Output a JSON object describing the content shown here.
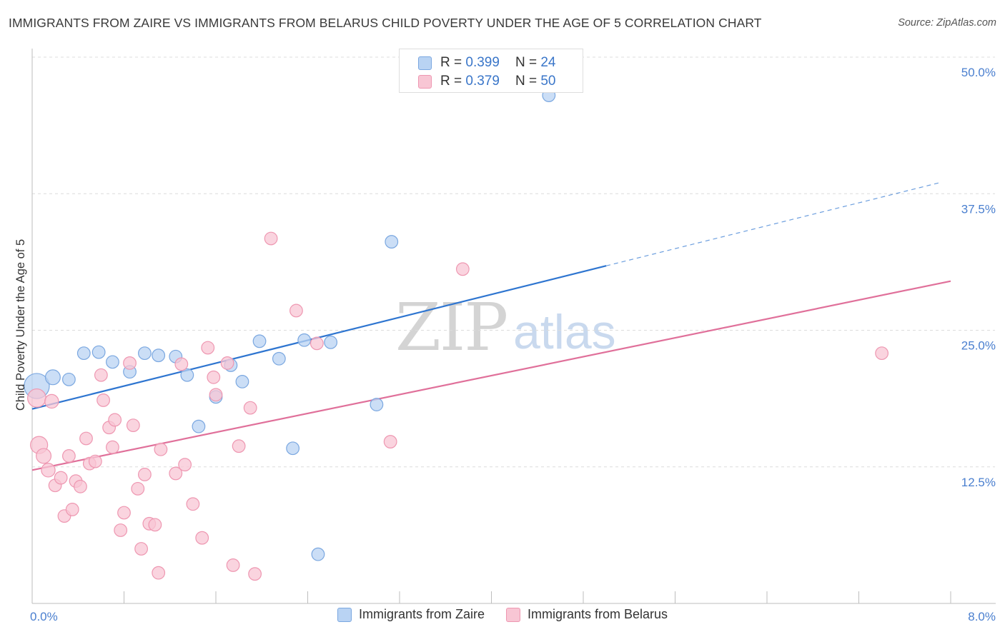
{
  "title": "IMMIGRANTS FROM ZAIRE VS IMMIGRANTS FROM BELARUS CHILD POVERTY UNDER THE AGE OF 5 CORRELATION CHART",
  "source": "Source: ZipAtlas.com",
  "watermark": {
    "zip": "ZIP",
    "atlas": "atlas"
  },
  "colors": {
    "zaire_fill": "#b9d3f3",
    "zaire_stroke": "#7aa7e0",
    "zaire_line": "#2e75d0",
    "belarus_fill": "#f8c6d4",
    "belarus_stroke": "#ee97b1",
    "belarus_line": "#e0709a",
    "tick": "#4a7fcf"
  },
  "legend": {
    "rows": [
      {
        "r_label": "R =",
        "r_value": "0.399",
        "n_label": "N =",
        "n_value": "24"
      },
      {
        "r_label": "R =",
        "r_value": "0.379",
        "n_label": "N =",
        "n_value": "50"
      }
    ]
  },
  "chart_data": {
    "type": "scatter",
    "ylabel": "Child Poverty Under the Age of 5",
    "xlim": [
      0,
      8
    ],
    "ylim": [
      0,
      50
    ],
    "x_tick_labels": [
      {
        "value": 0,
        "label": "0.0%"
      },
      {
        "value": 8,
        "label": "8.0%"
      }
    ],
    "y_tick_labels": [
      {
        "value": 12.5,
        "label": "12.5%"
      },
      {
        "value": 25,
        "label": "25.0%"
      },
      {
        "value": 37.5,
        "label": "37.5%"
      },
      {
        "value": 50,
        "label": "50.0%"
      }
    ],
    "grid": true,
    "legend_position": "top-center",
    "series": [
      {
        "name": "Immigrants from Zaire",
        "r": 0.399,
        "n": 24,
        "trend": {
          "x0": 0,
          "y0": 17.8,
          "x1": 5.0,
          "y1": 30.9,
          "dash_to_x": 7.9,
          "dash_to_y": 38.5
        },
        "points": [
          [
            0.04,
            19.9,
            2.2
          ],
          [
            0.18,
            20.7,
            1.3
          ],
          [
            0.32,
            20.5,
            1.1
          ],
          [
            0.45,
            22.9,
            1.1
          ],
          [
            0.58,
            23.0,
            1.1
          ],
          [
            0.7,
            22.1,
            1.1
          ],
          [
            0.85,
            21.2,
            1.1
          ],
          [
            0.98,
            22.9,
            1.1
          ],
          [
            1.1,
            22.7,
            1.1
          ],
          [
            1.25,
            22.6,
            1.1
          ],
          [
            1.35,
            20.9,
            1.1
          ],
          [
            1.45,
            16.2,
            1.1
          ],
          [
            1.6,
            18.9,
            1.1
          ],
          [
            1.73,
            21.8,
            1.1
          ],
          [
            1.83,
            20.3,
            1.1
          ],
          [
            1.98,
            24.0,
            1.1
          ],
          [
            2.15,
            22.4,
            1.1
          ],
          [
            2.37,
            24.1,
            1.1
          ],
          [
            2.27,
            14.2,
            1.1
          ],
          [
            2.49,
            4.5,
            1.1
          ],
          [
            2.6,
            23.9,
            1.1
          ],
          [
            3.0,
            18.2,
            1.1
          ],
          [
            3.13,
            33.1,
            1.1
          ],
          [
            4.5,
            46.5,
            1.1
          ]
        ]
      },
      {
        "name": "Immigrants from Belarus",
        "r": 0.379,
        "n": 50,
        "trend": {
          "x0": 0,
          "y0": 12.2,
          "x1": 8.0,
          "y1": 29.5
        },
        "points": [
          [
            0.04,
            18.8,
            1.6
          ],
          [
            0.06,
            14.5,
            1.5
          ],
          [
            0.1,
            13.5,
            1.3
          ],
          [
            0.14,
            12.2,
            1.2
          ],
          [
            0.17,
            18.5,
            1.2
          ],
          [
            0.2,
            10.8,
            1.1
          ],
          [
            0.25,
            11.5,
            1.1
          ],
          [
            0.28,
            8.0,
            1.1
          ],
          [
            0.32,
            13.5,
            1.1
          ],
          [
            0.35,
            8.6,
            1.1
          ],
          [
            0.38,
            11.2,
            1.1
          ],
          [
            0.42,
            10.7,
            1.1
          ],
          [
            0.47,
            15.1,
            1.1
          ],
          [
            0.5,
            12.8,
            1.1
          ],
          [
            0.55,
            13.0,
            1.1
          ],
          [
            0.6,
            20.9,
            1.1
          ],
          [
            0.62,
            18.6,
            1.1
          ],
          [
            0.67,
            16.1,
            1.1
          ],
          [
            0.7,
            14.3,
            1.1
          ],
          [
            0.72,
            16.8,
            1.1
          ],
          [
            0.77,
            6.7,
            1.1
          ],
          [
            0.8,
            8.3,
            1.1
          ],
          [
            0.85,
            22.0,
            1.1
          ],
          [
            0.88,
            16.3,
            1.1
          ],
          [
            0.92,
            10.5,
            1.1
          ],
          [
            0.95,
            5.0,
            1.1
          ],
          [
            0.98,
            11.8,
            1.1
          ],
          [
            1.02,
            7.3,
            1.1
          ],
          [
            1.07,
            7.2,
            1.1
          ],
          [
            1.12,
            14.1,
            1.1
          ],
          [
            1.1,
            2.8,
            1.1
          ],
          [
            1.25,
            11.9,
            1.1
          ],
          [
            1.3,
            21.9,
            1.1
          ],
          [
            1.33,
            12.7,
            1.1
          ],
          [
            1.4,
            9.1,
            1.1
          ],
          [
            1.48,
            6.0,
            1.1
          ],
          [
            1.53,
            23.4,
            1.1
          ],
          [
            1.58,
            20.7,
            1.1
          ],
          [
            1.6,
            19.1,
            1.1
          ],
          [
            1.7,
            22.0,
            1.1
          ],
          [
            1.75,
            3.5,
            1.1
          ],
          [
            1.8,
            14.4,
            1.1
          ],
          [
            1.9,
            17.9,
            1.1
          ],
          [
            1.94,
            2.7,
            1.1
          ],
          [
            2.08,
            33.4,
            1.1
          ],
          [
            2.3,
            26.8,
            1.1
          ],
          [
            2.48,
            23.8,
            1.1
          ],
          [
            3.12,
            14.8,
            1.1
          ],
          [
            3.75,
            30.6,
            1.1
          ],
          [
            7.4,
            22.9,
            1.1
          ]
        ]
      }
    ]
  }
}
